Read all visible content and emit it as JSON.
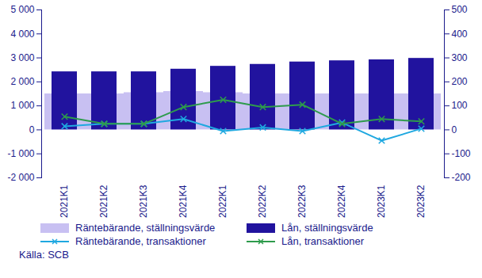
{
  "chart_data": {
    "type": "bar",
    "caption": "Källa: SCB",
    "categories": [
      "2021K1",
      "2021K2",
      "2021K3",
      "2021K4",
      "2022K1",
      "2022K2",
      "2022K3",
      "2022K4",
      "2023K1",
      "2023K2"
    ],
    "series": [
      {
        "name": "Räntebärande, ställningsvärde",
        "type": "bar",
        "color": "#c8c0f2",
        "values": [
          1500,
          1500,
          1550,
          1600,
          1550,
          1500,
          1500,
          1500,
          1500,
          1500
        ]
      },
      {
        "name": "Lån, ställningsvärde",
        "type": "bar",
        "color": "#21139e",
        "values": [
          2420,
          2420,
          2420,
          2530,
          2650,
          2730,
          2830,
          2880,
          2920,
          2980
        ]
      },
      {
        "name": "Räntebärande, transaktioner",
        "type": "line",
        "axis": "y2",
        "marker": "x",
        "color": "#1fa8e0",
        "values": [
          15,
          25,
          25,
          45,
          -5,
          10,
          -5,
          30,
          -45,
          5
        ]
      },
      {
        "name": "Lån, transaktioner",
        "type": "line",
        "axis": "y2",
        "marker": "x",
        "color": "#2e9b4c",
        "values": [
          55,
          25,
          25,
          95,
          125,
          95,
          105,
          25,
          45,
          35
        ]
      }
    ],
    "ylim": [
      -2000,
      5000
    ],
    "yticks": [
      {
        "value": -2000,
        "label": "-2 000"
      },
      {
        "value": -1000,
        "label": "-1 000"
      },
      0,
      {
        "value": 1000,
        "label": "1 000"
      },
      {
        "value": 2000,
        "label": "2 000"
      },
      {
        "value": 3000,
        "label": "3 000"
      },
      {
        "value": 4000,
        "label": "4 000"
      },
      {
        "value": 5000,
        "label": "5 000"
      }
    ],
    "y2lim": [
      -200,
      500
    ],
    "y2ticks": [
      -200,
      -100,
      0,
      100,
      200,
      300,
      400,
      500
    ],
    "legend": "bottom",
    "grid": false
  }
}
